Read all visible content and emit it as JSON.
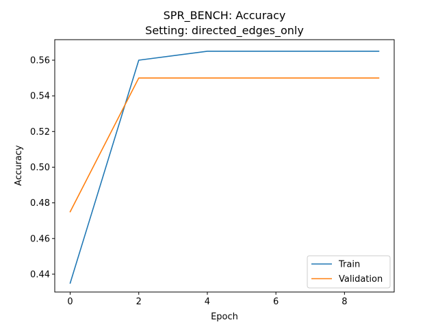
{
  "chart_data": {
    "type": "line",
    "title": "SPR_BENCH: Accuracy",
    "subtitle": "Setting: directed_edges_only",
    "xlabel": "Epoch",
    "ylabel": "Accuracy",
    "xlim": [
      -0.45,
      9.45
    ],
    "ylim": [
      0.43,
      0.5715
    ],
    "xticks": [
      0,
      2,
      4,
      6,
      8
    ],
    "yticks": [
      0.44,
      0.46,
      0.48,
      0.5,
      0.52,
      0.54,
      0.56
    ],
    "ytick_labels": [
      "0.44",
      "0.46",
      "0.48",
      "0.50",
      "0.52",
      "0.54",
      "0.56"
    ],
    "grid": false,
    "legend_position": "lower-right",
    "x": [
      0,
      2,
      4,
      6,
      8,
      9
    ],
    "series": [
      {
        "name": "Train",
        "color": "#1f77b4",
        "values": [
          0.435,
          0.56,
          0.565,
          0.565,
          0.565,
          0.565
        ]
      },
      {
        "name": "Validation",
        "color": "#ff7f0e",
        "values": [
          0.475,
          0.55,
          0.55,
          0.55,
          0.55,
          0.55
        ]
      }
    ]
  }
}
